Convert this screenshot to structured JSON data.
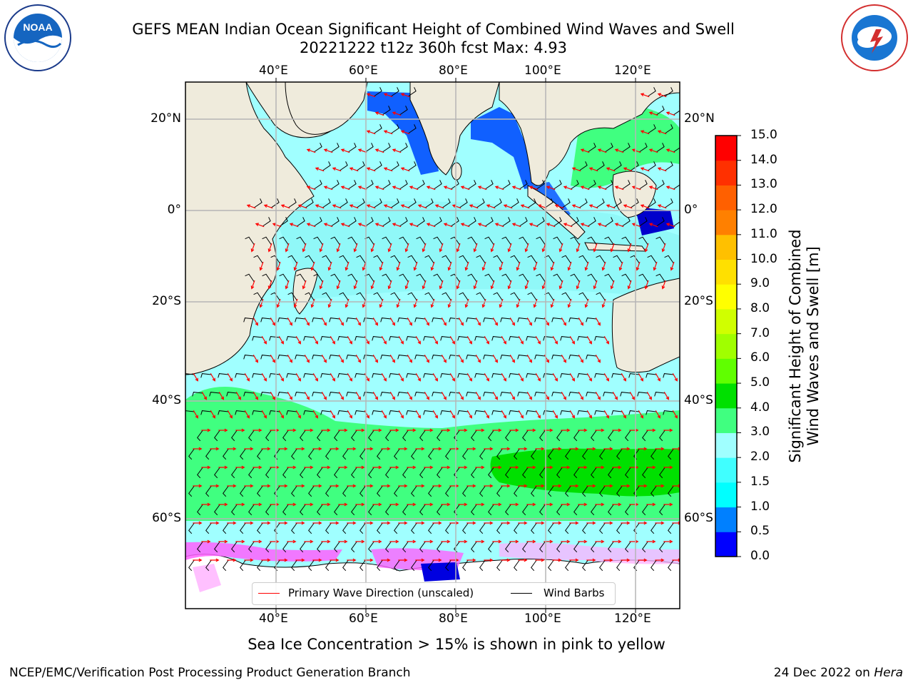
{
  "header": {
    "title_line1": "GEFS MEAN Indian Ocean Significant Height of Combined Wind Waves and Swell",
    "title_line2": "20221222 t12z 360h fcst   Max: 4.93"
  },
  "logos": {
    "left": {
      "name": "noaa-logo",
      "text": "NOAA",
      "ring_text": "NATIONAL OCEANIC AND ATMOSPHERIC ADMINISTRATION · U.S. DEPARTMENT OF COMMERCE"
    },
    "right": {
      "name": "nws-logo",
      "ring_text": "NATIONAL WEATHER SERVICE"
    }
  },
  "map": {
    "lon_ticks": [
      "40°E",
      "60°E",
      "80°E",
      "100°E",
      "120°E"
    ],
    "lat_ticks_left": [
      "20°N",
      "0°",
      "20°S",
      "40°S",
      "60°S"
    ],
    "lat_ticks_right": [
      "20°N",
      "0°",
      "20°S",
      "40°S",
      "60°S"
    ],
    "lon_range": [
      20,
      130
    ],
    "lat_range": [
      -73,
      28
    ],
    "land_color": "#efebdc",
    "grid_color": "#b5b5b5",
    "wave_arrow_color": "#ff0000",
    "barb_color": "#000000"
  },
  "legend": {
    "wave_label": "Primary Wave Direction (unscaled)",
    "barb_label": "Wind Barbs"
  },
  "colorbar": {
    "label_line1": "Significant Height of Combined",
    "label_line2": "Wind Waves and Swell [m]",
    "levels": [
      "0.0",
      "0.5",
      "1.0",
      "1.5",
      "2.0",
      "3.0",
      "4.0",
      "5.0",
      "6.0",
      "7.0",
      "8.0",
      "9.0",
      "10.0",
      "11.0",
      "12.0",
      "13.0",
      "14.0",
      "15.0"
    ],
    "colors": [
      "#0000ff",
      "#0080ff",
      "#00ffff",
      "#40ffff",
      "#a0ffff",
      "#40ff80",
      "#00e000",
      "#60ff00",
      "#a0ff00",
      "#d0ff00",
      "#ffff00",
      "#ffe000",
      "#ffc000",
      "#ff8000",
      "#ff6000",
      "#ff3000",
      "#ff0000"
    ]
  },
  "notes": {
    "sea_ice": "Sea Ice Concentration > 15% is shown in pink to yellow"
  },
  "footer": {
    "left": "NCEP/EMC/Verification Post Processing Product Generation Branch",
    "date": "24 Dec 2022 on ",
    "system": "Hera"
  }
}
